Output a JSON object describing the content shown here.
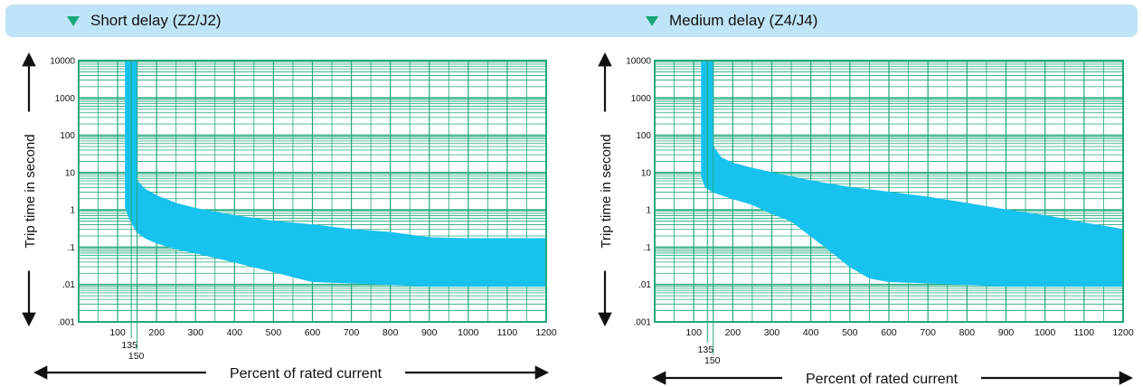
{
  "colors": {
    "grid": "#22a87c",
    "band": "#17c2ef",
    "header_bg": "#bfe4f7",
    "triangle": "#19a77a"
  },
  "chart_data": [
    {
      "type": "area",
      "title": "Short delay (Z2/J2)",
      "xlabel": "Percent of rated current",
      "ylabel": "Trip time in second",
      "xlim": [
        0,
        1200
      ],
      "ylim": [
        0.001,
        10000
      ],
      "yscale": "log",
      "x_ticks": [
        100,
        200,
        300,
        400,
        500,
        600,
        700,
        800,
        900,
        1000,
        1100,
        1200
      ],
      "y_ticks": [
        ".001",
        ".01",
        ".1",
        "1",
        "10",
        "100",
        "1000",
        "10000"
      ],
      "y_tick_values": [
        0.001,
        0.01,
        0.1,
        1,
        10,
        100,
        1000,
        10000
      ],
      "markers": [
        "135",
        "150"
      ],
      "grid": true,
      "series": [
        {
          "x": [
            120,
            120,
            130,
            150,
            170,
            200,
            250,
            300,
            400,
            500,
            600,
            700,
            800,
            900,
            1000,
            1100,
            1200
          ],
          "y": [
            10000,
            1.2,
            0.6,
            0.25,
            0.18,
            0.13,
            0.09,
            0.07,
            0.04,
            0.022,
            0.012,
            0.011,
            0.01,
            0.009,
            0.009,
            0.009,
            0.009
          ]
        },
        {
          "x": [
            150,
            150,
            170,
            200,
            250,
            300,
            400,
            500,
            600,
            700,
            800,
            900,
            1000,
            1100,
            1200
          ],
          "y": [
            10000,
            6,
            3.6,
            2.4,
            1.5,
            1.1,
            0.7,
            0.5,
            0.4,
            0.3,
            0.25,
            0.18,
            0.17,
            0.17,
            0.17
          ]
        }
      ]
    },
    {
      "type": "area",
      "title": "Medium delay (Z4/J4)",
      "xlabel": "Percent of rated current",
      "ylabel": "Trip time in second",
      "xlim": [
        0,
        1200
      ],
      "ylim": [
        0.001,
        10000
      ],
      "yscale": "log",
      "x_ticks": [
        100,
        200,
        300,
        400,
        500,
        600,
        700,
        800,
        900,
        1000,
        1100,
        1200
      ],
      "y_ticks": [
        ".001",
        ".01",
        ".1",
        "1",
        "10",
        "100",
        "1000",
        "10000"
      ],
      "y_tick_values": [
        0.001,
        0.01,
        0.1,
        1,
        10,
        100,
        1000,
        10000
      ],
      "markers": [
        "135",
        "150"
      ],
      "grid": true,
      "series": [
        {
          "x": [
            120,
            120,
            130,
            150,
            200,
            250,
            300,
            350,
            400,
            450,
            500,
            550,
            600,
            700,
            800,
            900,
            1000,
            1100,
            1200
          ],
          "y": [
            10000,
            8,
            4,
            3,
            2,
            1.4,
            0.8,
            0.5,
            0.2,
            0.08,
            0.03,
            0.015,
            0.012,
            0.011,
            0.01,
            0.009,
            0.009,
            0.009,
            0.009
          ]
        },
        {
          "x": [
            150,
            150,
            170,
            200,
            250,
            300,
            400,
            500,
            600,
            700,
            800,
            900,
            1000,
            1100,
            1200
          ],
          "y": [
            10000,
            50,
            25,
            18,
            13,
            10,
            6,
            4,
            3,
            2.2,
            1.5,
            1,
            0.7,
            0.45,
            0.3
          ]
        }
      ]
    }
  ]
}
